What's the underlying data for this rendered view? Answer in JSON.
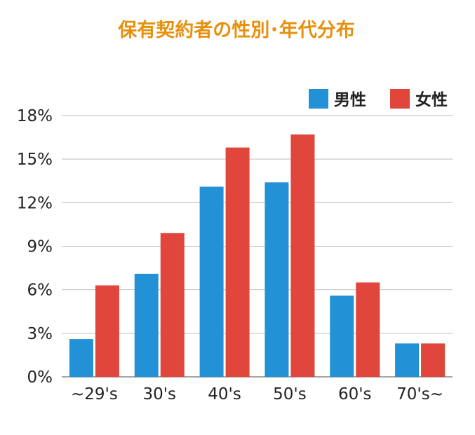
{
  "chart_data": {
    "type": "bar",
    "title": "保有契約者の性別･年代分布",
    "xlabel": "",
    "ylabel": "",
    "categories": [
      "~29's",
      "30's",
      "40's",
      "50's",
      "60's",
      "70's~"
    ],
    "series": [
      {
        "name": "男性",
        "color": "#2291d6",
        "values": [
          2.6,
          7.1,
          13.1,
          13.4,
          5.6,
          2.3
        ]
      },
      {
        "name": "女性",
        "color": "#e0463c",
        "values": [
          6.3,
          9.9,
          15.8,
          16.7,
          6.5,
          2.3
        ]
      }
    ],
    "ylim": [
      0,
      18
    ],
    "yticks": [
      "0%",
      "3%",
      "6%",
      "9%",
      "12%",
      "15%",
      "18%"
    ],
    "grid": true,
    "legend_position": "top-right",
    "title_color": "#e8900c"
  }
}
